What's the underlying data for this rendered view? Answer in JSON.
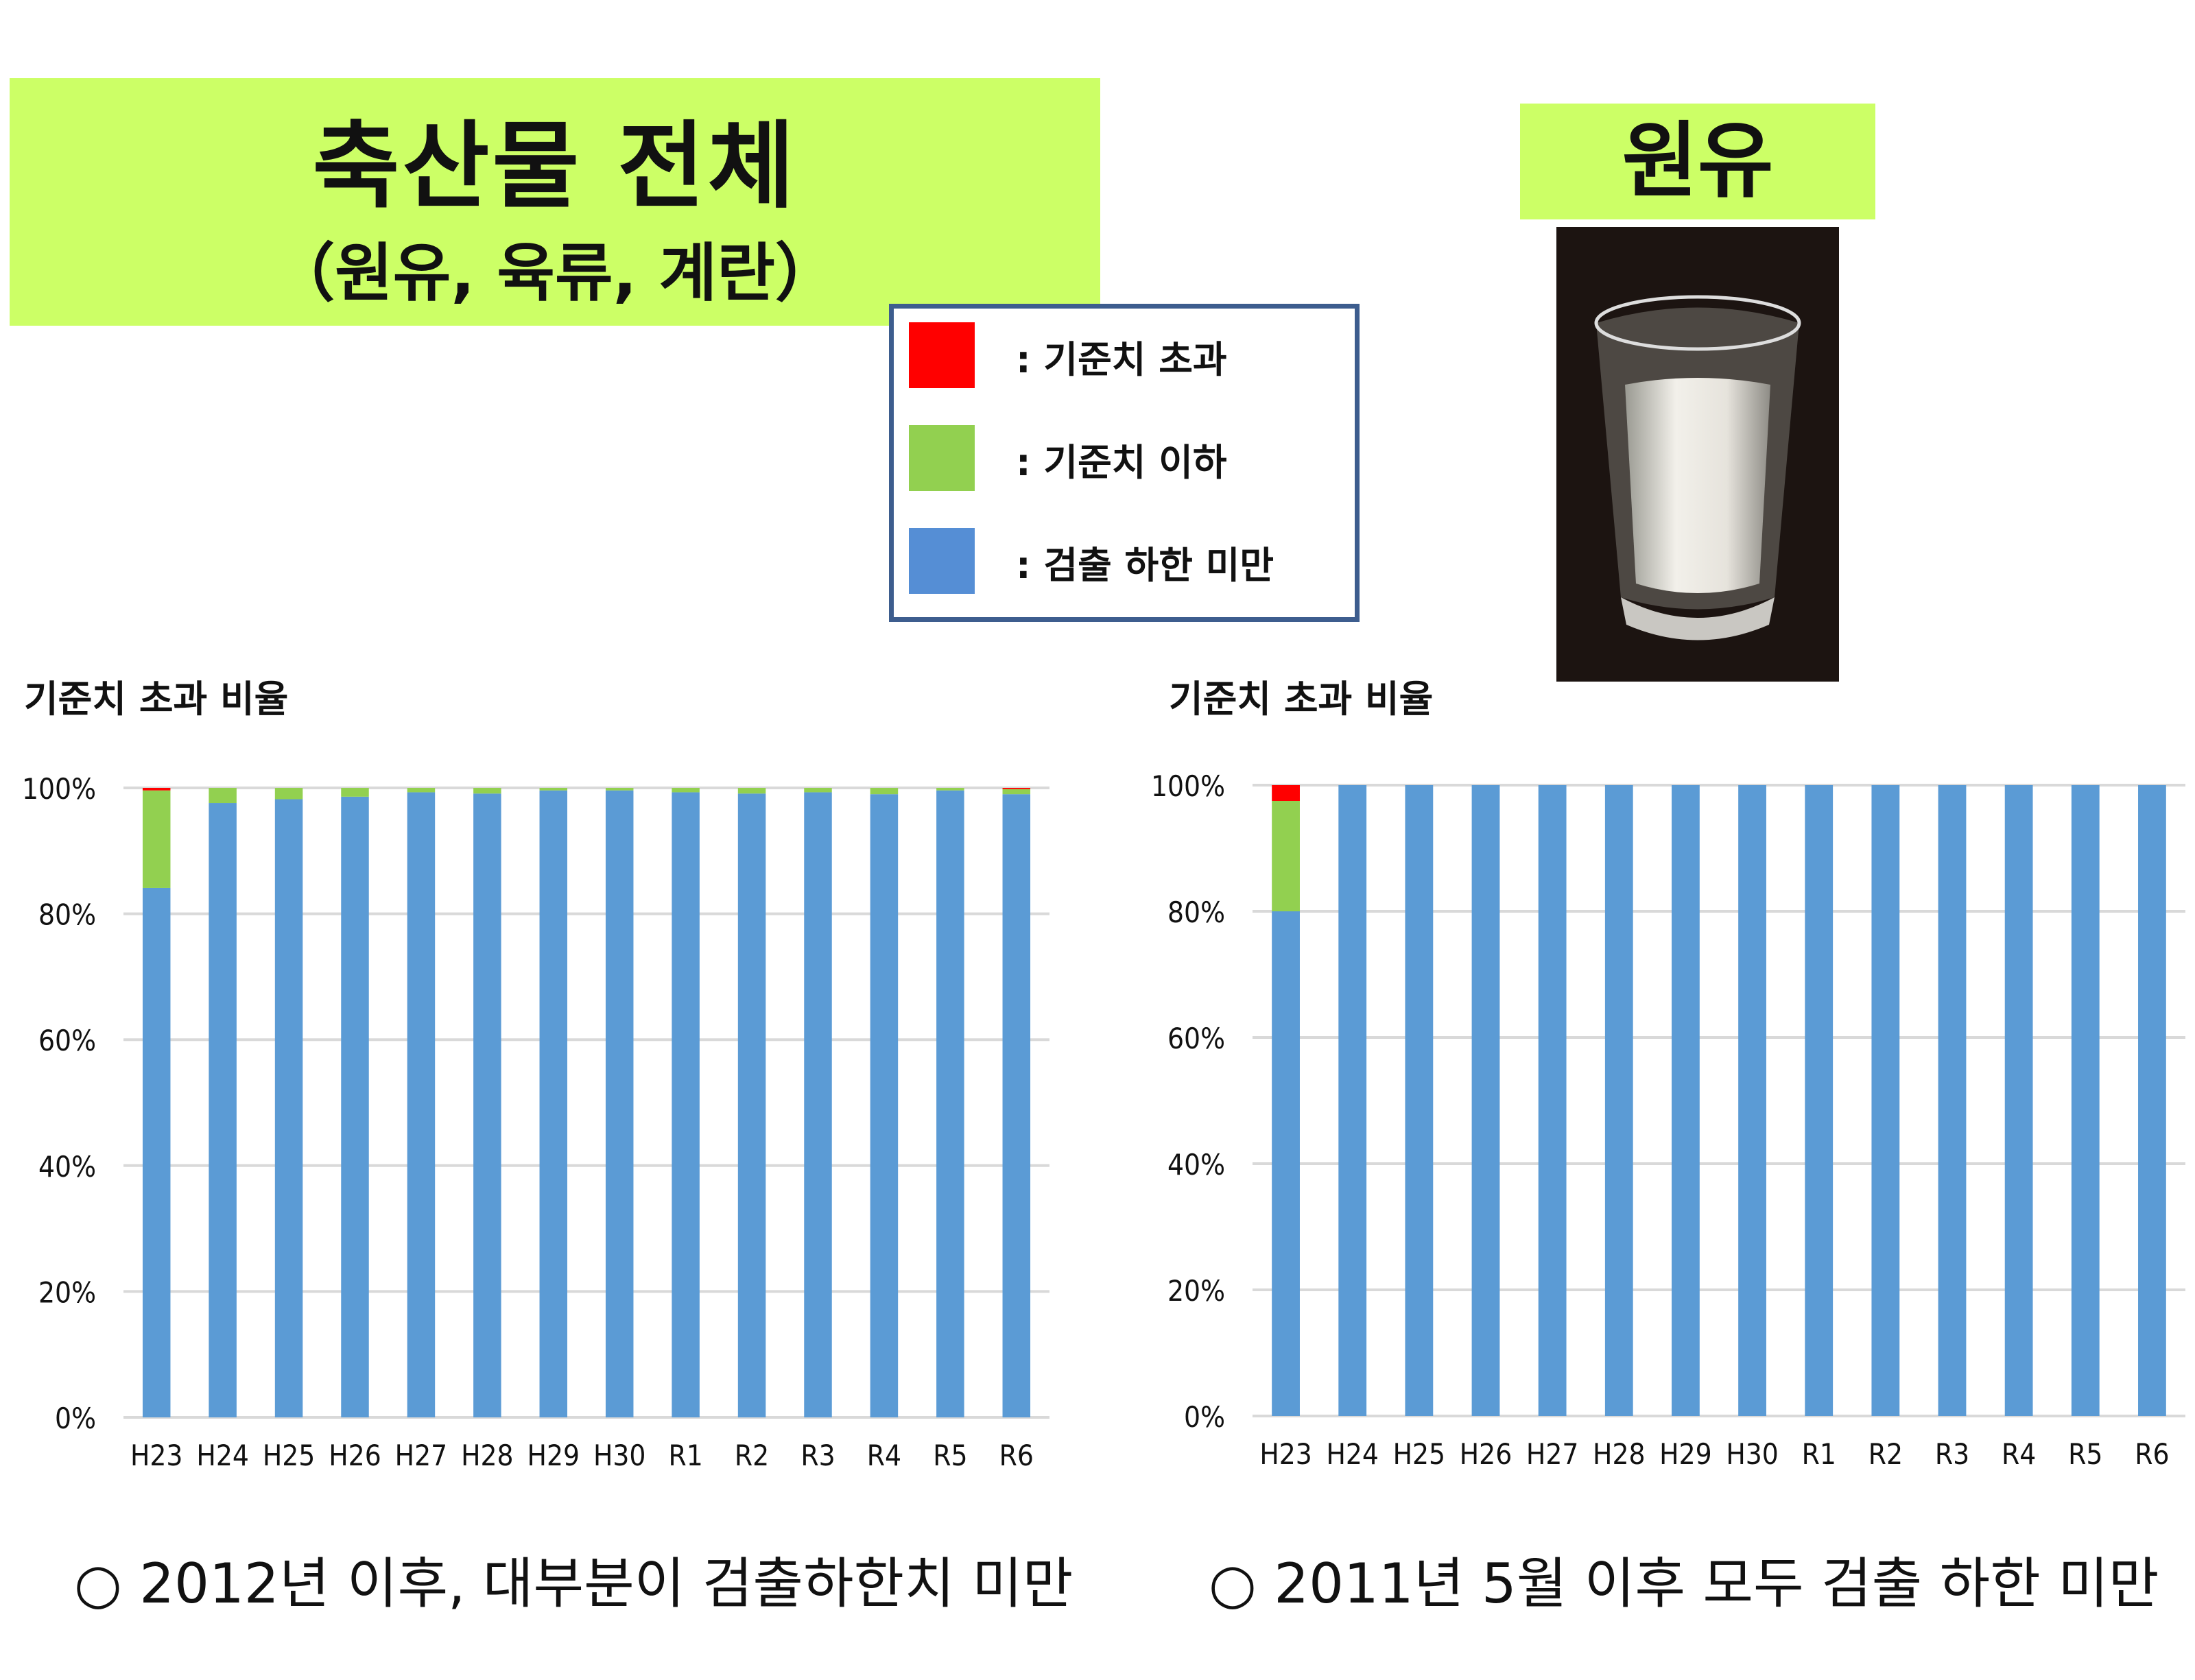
{
  "header": {
    "title": "축산물 전체",
    "subtitle": "（원유, 육류, 계란）",
    "milk_label": "원유"
  },
  "legend": {
    "items": [
      {
        "label": ": 기준치 초과",
        "color": "#ff0000"
      },
      {
        "label": ": 기준치 이하",
        "color": "#92d050"
      },
      {
        "label": ": 검출 하한 미만",
        "color": "#558ed5"
      }
    ]
  },
  "photo": {
    "icon": "milk-glass-photo"
  },
  "chart_data": [
    {
      "type": "bar",
      "stacked": true,
      "title": "기준치 초과 비율",
      "categories": [
        "H23",
        "H24",
        "H25",
        "H26",
        "H27",
        "H28",
        "H29",
        "H30",
        "R1",
        "R2",
        "R3",
        "R4",
        "R5",
        "R6"
      ],
      "yticks": [
        "0%",
        "20%",
        "40%",
        "60%",
        "80%",
        "100%"
      ],
      "ylim": [
        0,
        100
      ],
      "grid": true,
      "series": [
        {
          "key": "below_detection",
          "color": "#5b9bd5",
          "values": [
            84.1,
            97.6,
            98.2,
            98.6,
            99.3,
            99.1,
            99.6,
            99.6,
            99.3,
            99.1,
            99.3,
            99.0,
            99.6,
            99.0
          ]
        },
        {
          "key": "below_limit",
          "color": "#92d050",
          "values": [
            15.5,
            2.4,
            1.8,
            1.4,
            0.7,
            0.9,
            0.4,
            0.4,
            0.7,
            0.9,
            0.7,
            1.0,
            0.4,
            0.8
          ]
        },
        {
          "key": "over_limit",
          "color": "#ff0000",
          "values": [
            0.4,
            0,
            0,
            0,
            0,
            0,
            0,
            0,
            0,
            0,
            0,
            0,
            0,
            0.2
          ]
        }
      ],
      "note": "○ 2012년 이후, 대부분이 검출하한치 미만"
    },
    {
      "type": "bar",
      "stacked": true,
      "title": "기준치 초과 비율",
      "categories": [
        "H23",
        "H24",
        "H25",
        "H26",
        "H27",
        "H28",
        "H29",
        "H30",
        "R1",
        "R2",
        "R3",
        "R4",
        "R5",
        "R6"
      ],
      "yticks": [
        "0%",
        "20%",
        "40%",
        "60%",
        "80%",
        "100%"
      ],
      "ylim": [
        0,
        100
      ],
      "grid": true,
      "series": [
        {
          "key": "below_detection",
          "color": "#5b9bd5",
          "values": [
            80,
            100,
            100,
            100,
            100,
            100,
            100,
            100,
            100,
            100,
            100,
            100,
            100,
            100
          ]
        },
        {
          "key": "below_limit",
          "color": "#92d050",
          "values": [
            17.5,
            0,
            0,
            0,
            0,
            0,
            0,
            0,
            0,
            0,
            0,
            0,
            0,
            0
          ]
        },
        {
          "key": "over_limit",
          "color": "#ff0000",
          "values": [
            2.5,
            0,
            0,
            0,
            0,
            0,
            0,
            0,
            0,
            0,
            0,
            0,
            0,
            0
          ]
        }
      ],
      "note": "○ 2011년 5월 이후 모두 검출 하한 미만"
    }
  ]
}
